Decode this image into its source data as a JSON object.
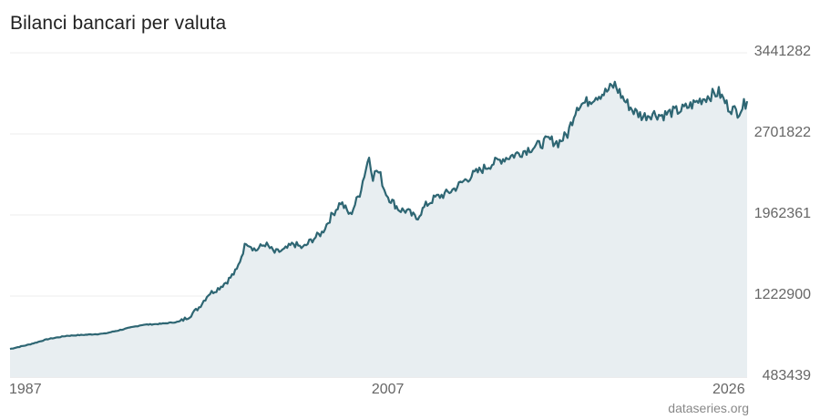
{
  "title": "Bilanci bancari per valuta",
  "source": "dataseries.org",
  "colors": {
    "line": "#2e6673",
    "area": "#e8eef1",
    "grid": "#ececec"
  },
  "chart_data": {
    "type": "area",
    "title": "Bilanci bancari per valuta",
    "xlabel": "",
    "ylabel": "",
    "xlim": [
      1987,
      2026
    ],
    "ylim": [
      483439,
      3441282
    ],
    "x_tick_labels": [
      "1987",
      "2007",
      "2026"
    ],
    "y_tick_labels": [
      "483439",
      "1222900",
      "1962361",
      "2701822",
      "3441282"
    ],
    "grid": "horizontal",
    "series": [
      {
        "x": [
          1987.0,
          1988.0,
          1989.0,
          1990.0,
          1991.0,
          1992.0,
          1993.0,
          1994.0,
          1995.0,
          1996.0,
          1996.5,
          1997.0,
          1997.5,
          1998.0,
          1998.5,
          1999.0,
          1999.5,
          2000.0,
          2000.5,
          2001.0,
          2001.5,
          2002.0,
          2002.5,
          2003.0,
          2003.5,
          2004.0,
          2004.5,
          2005.0,
          2005.5,
          2006.0,
          2006.2,
          2006.4,
          2006.6,
          2006.8,
          2007.0,
          2007.3,
          2007.6,
          2008.0,
          2008.5,
          2009.0,
          2009.5,
          2010.0,
          2010.5,
          2011.0,
          2011.5,
          2012.0,
          2012.5,
          2013.0,
          2013.5,
          2014.0,
          2014.5,
          2015.0,
          2015.5,
          2016.0,
          2016.5,
          2017.0,
          2017.5,
          2018.0,
          2018.5,
          2019.0,
          2019.5,
          2020.0,
          2020.5,
          2021.0,
          2021.5,
          2022.0,
          2022.5,
          2023.0,
          2023.5,
          2024.0,
          2024.5,
          2025.0,
          2025.5,
          2026.0
        ],
        "values": [
          740000,
          780000,
          830000,
          860000,
          870000,
          880000,
          920000,
          960000,
          970000,
          990000,
          1040000,
          1120000,
          1240000,
          1290000,
          1360000,
          1460000,
          1720000,
          1640000,
          1700000,
          1620000,
          1640000,
          1700000,
          1660000,
          1740000,
          1800000,
          1950000,
          2080000,
          1960000,
          2160000,
          2500000,
          2310000,
          2370000,
          2320000,
          2200000,
          2130000,
          2070000,
          2010000,
          2000000,
          1930000,
          2050000,
          2120000,
          2150000,
          2200000,
          2270000,
          2330000,
          2380000,
          2430000,
          2470000,
          2500000,
          2530000,
          2570000,
          2600000,
          2650000,
          2620000,
          2700000,
          2960000,
          2990000,
          3050000,
          3080000,
          3150000,
          3010000,
          2910000,
          2860000,
          2890000,
          2870000,
          2900000,
          2920000,
          2960000,
          3010000,
          3050000,
          3080000,
          2950000,
          2900000,
          3000000
        ]
      }
    ]
  }
}
